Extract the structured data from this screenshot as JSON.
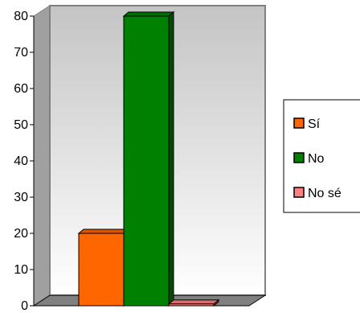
{
  "chart_data": {
    "type": "bar",
    "categories": [
      "Sí",
      "No",
      "No sé"
    ],
    "values": [
      20,
      80,
      0.5
    ],
    "colors": [
      "#ff6600",
      "#008000",
      "#ff8080"
    ],
    "ylim": [
      0,
      80
    ],
    "yticks": [
      "0",
      "10",
      "20",
      "30",
      "40",
      "50",
      "60",
      "70",
      "80"
    ],
    "legend": {
      "position": "right",
      "items": [
        "Sí",
        "No",
        "No sé"
      ]
    },
    "grid": false,
    "style": "3d"
  }
}
